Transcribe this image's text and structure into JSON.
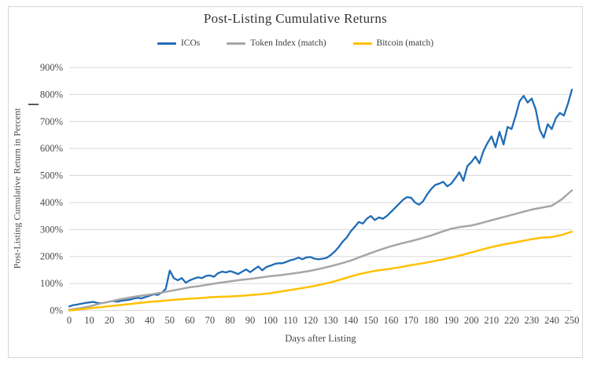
{
  "title": "Post-Listing Cumulative Returns",
  "colors": {
    "icos": "#1f6cb5",
    "token_index": "#a6a6a6",
    "bitcoin": "#ffc000",
    "grid": "#d9d9d9",
    "tick_text": "#4a4a4a"
  },
  "chart_data": {
    "type": "line",
    "title": "Post-Listing Cumulative Returns",
    "xlabel": "Days after Listing",
    "ylabel": "Post-Listing Cumulative Return in Percent",
    "xlim": [
      0,
      250
    ],
    "ylim": [
      0,
      900
    ],
    "x_tick_step": 10,
    "y_tick_step": 100,
    "y_tick_suffix": "%",
    "grid": true,
    "legend_position": "top",
    "series": [
      {
        "name": "ICOs",
        "color": "#1f6cb5",
        "x": [
          0,
          2,
          4,
          6,
          8,
          10,
          12,
          14,
          16,
          18,
          20,
          22,
          24,
          26,
          28,
          30,
          32,
          34,
          36,
          38,
          40,
          42,
          44,
          46,
          48,
          50,
          52,
          54,
          56,
          58,
          60,
          62,
          64,
          66,
          68,
          70,
          72,
          74,
          76,
          78,
          80,
          82,
          84,
          86,
          88,
          90,
          92,
          94,
          96,
          98,
          100,
          102,
          104,
          106,
          108,
          110,
          112,
          114,
          116,
          118,
          120,
          122,
          124,
          126,
          128,
          130,
          132,
          134,
          136,
          138,
          140,
          142,
          144,
          146,
          148,
          150,
          152,
          154,
          156,
          158,
          160,
          162,
          164,
          166,
          168,
          170,
          172,
          174,
          176,
          178,
          180,
          182,
          184,
          186,
          188,
          190,
          192,
          194,
          196,
          198,
          200,
          202,
          204,
          206,
          208,
          210,
          212,
          214,
          216,
          218,
          220,
          222,
          224,
          226,
          228,
          230,
          232,
          234,
          236,
          238,
          240,
          242,
          244,
          246,
          248,
          250
        ],
        "y": [
          15,
          20,
          22,
          25,
          28,
          30,
          32,
          28,
          27,
          30,
          33,
          35,
          33,
          36,
          38,
          40,
          44,
          47,
          45,
          50,
          55,
          60,
          58,
          66,
          80,
          148,
          120,
          112,
          120,
          103,
          112,
          118,
          123,
          120,
          128,
          130,
          125,
          138,
          144,
          141,
          146,
          141,
          135,
          144,
          152,
          142,
          153,
          163,
          149,
          161,
          166,
          172,
          175,
          175,
          180,
          186,
          190,
          196,
          190,
          197,
          198,
          192,
          190,
          192,
          195,
          205,
          218,
          235,
          255,
          270,
          293,
          310,
          328,
          322,
          340,
          350,
          335,
          345,
          340,
          350,
          365,
          380,
          395,
          410,
          420,
          418,
          400,
          392,
          405,
          430,
          450,
          465,
          470,
          477,
          460,
          470,
          490,
          512,
          480,
          535,
          550,
          570,
          545,
          590,
          620,
          645,
          605,
          662,
          615,
          680,
          672,
          720,
          775,
          795,
          770,
          785,
          745,
          670,
          640,
          690,
          672,
          712,
          732,
          722,
          765,
          818
        ]
      },
      {
        "name": "Token Index (match)",
        "color": "#a6a6a6",
        "x": [
          0,
          5,
          10,
          15,
          20,
          25,
          30,
          35,
          40,
          45,
          50,
          55,
          60,
          65,
          70,
          75,
          80,
          85,
          90,
          95,
          100,
          105,
          110,
          115,
          120,
          125,
          130,
          135,
          140,
          145,
          150,
          155,
          160,
          165,
          170,
          175,
          180,
          185,
          190,
          195,
          200,
          205,
          210,
          215,
          220,
          225,
          230,
          235,
          240,
          245,
          250
        ],
        "y": [
          3,
          8,
          15,
          25,
          33,
          41,
          48,
          54,
          59,
          65,
          72,
          79,
          86,
          91,
          97,
          103,
          108,
          113,
          117,
          122,
          127,
          131,
          136,
          141,
          147,
          155,
          164,
          174,
          185,
          199,
          213,
          226,
          238,
          248,
          257,
          267,
          278,
          291,
          303,
          310,
          315,
          324,
          334,
          344,
          354,
          364,
          374,
          381,
          388,
          412,
          445
        ]
      },
      {
        "name": "Bitcoin (match)",
        "color": "#ffc000",
        "x": [
          0,
          5,
          10,
          15,
          20,
          25,
          30,
          35,
          40,
          45,
          50,
          55,
          60,
          65,
          70,
          75,
          80,
          85,
          90,
          95,
          100,
          105,
          110,
          115,
          120,
          125,
          130,
          135,
          140,
          145,
          150,
          155,
          160,
          165,
          170,
          175,
          180,
          185,
          190,
          195,
          200,
          205,
          210,
          215,
          220,
          225,
          230,
          235,
          240,
          245,
          250
        ],
        "y": [
          0,
          4,
          8,
          12,
          16,
          20,
          24,
          28,
          32,
          35,
          38,
          41,
          44,
          46,
          49,
          51,
          52,
          54,
          57,
          60,
          64,
          70,
          76,
          82,
          88,
          96,
          104,
          115,
          126,
          136,
          144,
          150,
          155,
          161,
          168,
          174,
          181,
          188,
          196,
          205,
          215,
          225,
          235,
          243,
          250,
          257,
          264,
          270,
          272,
          280,
          292
        ]
      }
    ]
  },
  "geometry_note": "plot area maps days 0-250 to x 88-727 px and 0%-900% to y 395.5-86 px"
}
